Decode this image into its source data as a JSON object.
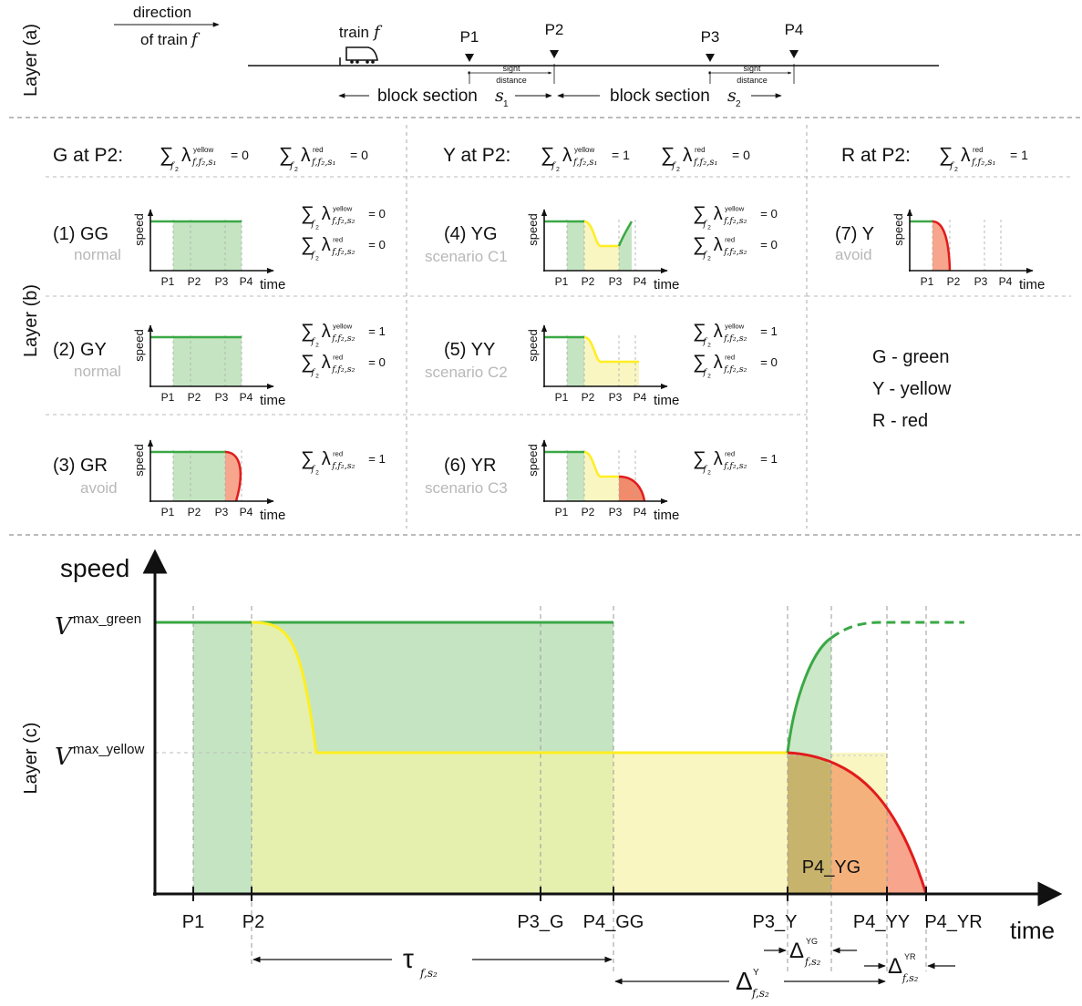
{
  "layers": {
    "a": "Layer (a)",
    "b": "Layer (b)",
    "c": "Layer (c)"
  },
  "layer_a": {
    "direction_line1": "direction",
    "direction_line2": "of train",
    "train_symbol": "f",
    "train_label": "train",
    "points": [
      "P1",
      "P2",
      "P3",
      "P4"
    ],
    "sight_line1": "sight",
    "sight_line2": "distance",
    "block_label": "block section",
    "block_s1": "s",
    "block_s1_sub": "1",
    "block_s2": "s",
    "block_s2_sub": "2"
  },
  "headers": {
    "g_at_p2": "G at P2:",
    "y_at_p2": "Y at P2:",
    "r_at_p2": "R at P2:",
    "sum_sym": "∑",
    "lambda_sym": "λ",
    "sup_yellow": "yellow",
    "sup_red": "red",
    "sub_f2": "f",
    "sub_f2_num": "2",
    "sub_ffs1": "f,f₂,s₁",
    "sub_ffs2": "f,f₂,s₂",
    "val_0": "= 0",
    "val_1": "= 1"
  },
  "cases": [
    {
      "id": "(1) GG",
      "sub": "normal"
    },
    {
      "id": "(2) GY",
      "sub": "normal"
    },
    {
      "id": "(3) GR",
      "sub": "avoid"
    },
    {
      "id": "(4) YG",
      "sub": "scenario C1"
    },
    {
      "id": "(5) YY",
      "sub": "scenario C2"
    },
    {
      "id": "(6) YR",
      "sub": "scenario C3"
    },
    {
      "id": "(7) Y",
      "sub": "avoid"
    }
  ],
  "mini_axes": {
    "speed": "speed",
    "time": "time"
  },
  "legend": [
    "G - green",
    "Y - yellow",
    "R - red"
  ],
  "layer_c": {
    "y_title": "speed",
    "x_title": "time",
    "v_letter": "V",
    "vmax_green_sup": "max_green",
    "vmax_yellow_sup": "max_yellow",
    "x_ticks": [
      "P1",
      "P2",
      "P3_G",
      "P4_GG",
      "P3_Y",
      "P4_YY",
      "P4_YR"
    ],
    "inner_label": "P4_YG",
    "tau": "τ",
    "delta": "Δ",
    "sub_fs2": "f,s₂",
    "sup_y": "Y",
    "sup_yg": "YG",
    "sup_yr": "YR"
  },
  "colors": {
    "green": "#3aa845",
    "yellow": "#ffee22",
    "red": "#e11b1b",
    "green_fill": "#c5e5c2",
    "yellow_fill": "#f9f6c2",
    "red_fill": "#f7a58d",
    "dash": "#999999"
  }
}
